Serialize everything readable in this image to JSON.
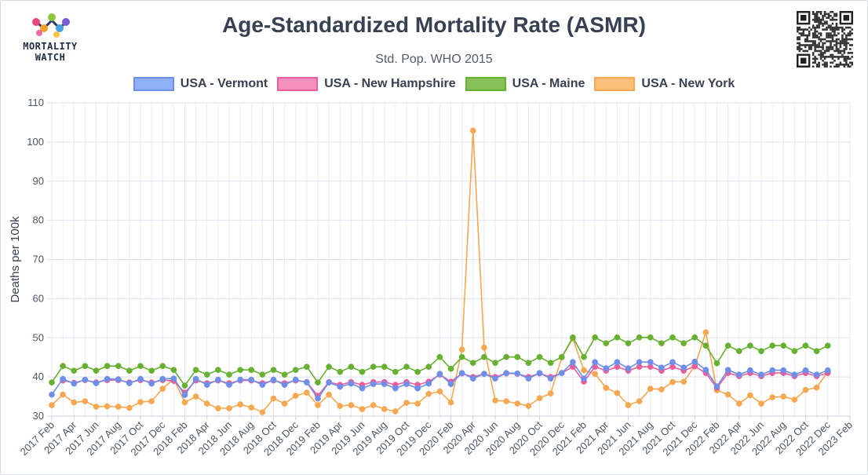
{
  "logo": {
    "line1": "MORTALITY",
    "line2": "WATCH"
  },
  "chart_data": {
    "type": "line",
    "title": "Age-Standardized Mortality Rate (ASMR)",
    "subtitle": "Std. Pop. WHO 2015",
    "xlabel": "",
    "ylabel": "Deaths per 100k",
    "ylim": [
      30,
      110
    ],
    "yticks": [
      30,
      40,
      50,
      60,
      70,
      80,
      90,
      100,
      110
    ],
    "grid": true,
    "legend_position": "top",
    "x": [
      "2017 Feb",
      "2017 Mar",
      "2017 Apr",
      "2017 May",
      "2017 Jun",
      "2017 Jul",
      "2017 Aug",
      "2017 Sep",
      "2017 Oct",
      "2017 Nov",
      "2017 Dec",
      "2018 Jan",
      "2018 Feb",
      "2018 Mar",
      "2018 Apr",
      "2018 May",
      "2018 Jun",
      "2018 Jul",
      "2018 Aug",
      "2018 Sep",
      "2018 Oct",
      "2018 Nov",
      "2018 Dec",
      "2019 Jan",
      "2019 Feb",
      "2019 Mar",
      "2019 Apr",
      "2019 May",
      "2019 Jun",
      "2019 Jul",
      "2019 Aug",
      "2019 Sep",
      "2019 Oct",
      "2019 Nov",
      "2019 Dec",
      "2020 Jan",
      "2020 Feb",
      "2020 Mar",
      "2020 Apr",
      "2020 May",
      "2020 Jun",
      "2020 Jul",
      "2020 Aug",
      "2020 Sep",
      "2020 Oct",
      "2020 Nov",
      "2020 Dec",
      "2021 Jan",
      "2021 Feb",
      "2021 Mar",
      "2021 Apr",
      "2021 May",
      "2021 Jun",
      "2021 Jul",
      "2021 Aug",
      "2021 Sep",
      "2021 Oct",
      "2021 Nov",
      "2021 Dec",
      "2022 Jan",
      "2022 Feb",
      "2022 Mar",
      "2022 Apr",
      "2022 May",
      "2022 Jun",
      "2022 Jul",
      "2022 Aug",
      "2022 Sep",
      "2022 Oct",
      "2022 Nov",
      "2022 Dec",
      "2023 Jan",
      "2023 Feb"
    ],
    "x_tick_labels": [
      "2017 Feb",
      "2017 Apr",
      "2017 Jun",
      "2017 Aug",
      "2017 Oct",
      "2017 Dec",
      "2018 Feb",
      "2018 Apr",
      "2018 Jun",
      "2018 Aug",
      "2018 Oct",
      "2018 Dec",
      "2019 Feb",
      "2019 Apr",
      "2019 Jun",
      "2019 Aug",
      "2019 Oct",
      "2019 Dec",
      "2020 Feb",
      "2020 Apr",
      "2020 Jun",
      "2020 Aug",
      "2020 Oct",
      "2020 Dec",
      "2021 Feb",
      "2021 Apr",
      "2021 Jun",
      "2021 Aug",
      "2021 Oct",
      "2021 Dec",
      "2022 Feb",
      "2022 Apr",
      "2022 Jun",
      "2022 Aug",
      "2022 Oct",
      "2022 Dec",
      "2023 Feb"
    ],
    "series": [
      {
        "name": "USA - Vermont",
        "color": "#6e8ee8",
        "fill": "#8fb0f5",
        "values": [
          35.5,
          39.5,
          38.3,
          39.3,
          38.4,
          39.5,
          39.4,
          38.4,
          39.5,
          38.3,
          39.5,
          39.6,
          35.4,
          39.5,
          38.0,
          39.3,
          38.0,
          39.3,
          39.3,
          38.0,
          39.3,
          38.0,
          39.3,
          38.6,
          34.5,
          38.6,
          37.5,
          38.3,
          37.1,
          38.2,
          38.2,
          37.1,
          38.2,
          37.1,
          38.3,
          40.8,
          38.2,
          41.0,
          39.6,
          40.8,
          39.6,
          41.0,
          40.9,
          39.6,
          41.0,
          39.6,
          41.0,
          43.8,
          39.6,
          43.8,
          42.2,
          43.8,
          42.2,
          43.8,
          43.8,
          42.4,
          43.8,
          42.4,
          43.9,
          41.8,
          37.6,
          41.8,
          40.6,
          41.7,
          40.6,
          41.7,
          41.7,
          40.6,
          41.7,
          40.6,
          41.7,
          null,
          null
        ]
      },
      {
        "name": "USA - New Hampshire",
        "color": "#ea5f9b",
        "fill": "#f58fbb",
        "values": [
          null,
          39.1,
          38.5,
          39.2,
          38.6,
          39.2,
          39.2,
          38.6,
          39.2,
          38.6,
          39.2,
          39.0,
          36.0,
          39.1,
          38.4,
          39.1,
          38.4,
          39.1,
          39.1,
          38.4,
          39.1,
          38.4,
          39.1,
          38.7,
          35.2,
          38.7,
          38.0,
          38.7,
          38.0,
          38.7,
          38.7,
          38.0,
          38.7,
          38.0,
          38.8,
          40.6,
          38.8,
          40.9,
          40.0,
          40.8,
          40.0,
          40.9,
          40.8,
          40.0,
          40.9,
          40.0,
          41.0,
          42.6,
          38.8,
          42.6,
          41.6,
          42.6,
          41.6,
          42.6,
          42.6,
          41.6,
          42.6,
          41.6,
          42.7,
          41.0,
          37.2,
          41.0,
          40.2,
          41.0,
          40.2,
          41.0,
          41.0,
          40.2,
          41.0,
          40.2,
          41.0,
          null,
          null
        ]
      },
      {
        "name": "USA - Maine",
        "color": "#67b032",
        "fill": "#86c157",
        "values": [
          38.6,
          42.8,
          41.6,
          42.8,
          41.6,
          42.8,
          42.8,
          41.6,
          42.8,
          41.6,
          42.8,
          41.8,
          37.8,
          41.8,
          40.6,
          41.8,
          40.6,
          41.8,
          41.8,
          40.6,
          41.8,
          40.6,
          41.8,
          42.6,
          38.6,
          42.6,
          41.3,
          42.6,
          41.3,
          42.6,
          42.6,
          41.3,
          42.6,
          41.3,
          42.6,
          45.1,
          42.1,
          45.1,
          43.6,
          45.1,
          43.6,
          45.1,
          45.1,
          43.6,
          45.1,
          43.6,
          45.1,
          50.1,
          45.1,
          50.1,
          48.6,
          50.1,
          48.6,
          50.1,
          50.1,
          48.6,
          50.1,
          48.6,
          50.1,
          48.0,
          43.5,
          48.0,
          46.6,
          48.0,
          46.6,
          48.0,
          48.0,
          46.6,
          48.0,
          46.6,
          48.0,
          null,
          null
        ]
      },
      {
        "name": "USA - New York",
        "color": "#f5a851",
        "fill": "#fbbf7a",
        "values": [
          32.8,
          35.5,
          33.5,
          33.8,
          32.4,
          32.5,
          32.4,
          32.1,
          33.6,
          33.8,
          37.0,
          39.5,
          33.5,
          35.0,
          33.2,
          32.0,
          32.0,
          33.0,
          32.2,
          31.0,
          34.5,
          33.2,
          35.2,
          36.0,
          32.8,
          35.5,
          32.6,
          32.8,
          31.8,
          32.8,
          31.8,
          31.2,
          33.4,
          33.2,
          35.7,
          36.3,
          33.5,
          47.0,
          102.9,
          47.5,
          34.0,
          33.8,
          33.2,
          32.6,
          34.6,
          35.8,
          45.0,
          49.8,
          41.7,
          40.8,
          37.2,
          35.9,
          32.8,
          33.8,
          37.0,
          36.8,
          38.7,
          38.8,
          42.8,
          51.4,
          36.6,
          35.5,
          33.2,
          35.3,
          33.2,
          34.8,
          35.0,
          34.2,
          36.7,
          37.3,
          41.3,
          null,
          null
        ]
      }
    ]
  }
}
